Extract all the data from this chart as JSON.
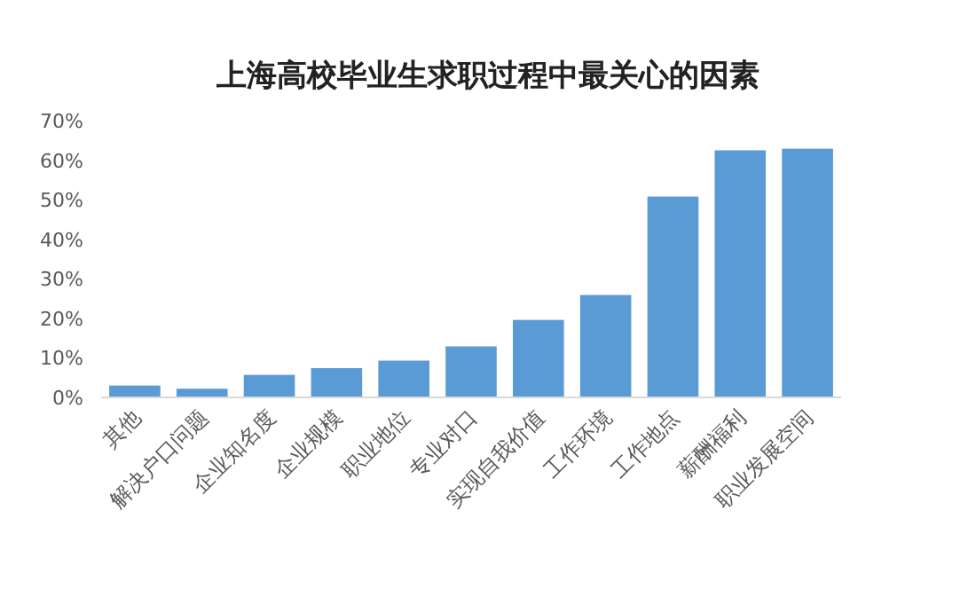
{
  "chart_data": {
    "type": "bar",
    "title": "上海高校毕业生求职过程中最关心的因素",
    "categories": [
      "其他",
      "解决户口问题",
      "企业知名度",
      "企业规模",
      "职业地位",
      "专业对口",
      "实现自我价值",
      "工作环境",
      "工作地点",
      "薪酬福利",
      "职业发展空间"
    ],
    "values": [
      3.0,
      2.2,
      5.7,
      7.4,
      9.3,
      12.9,
      19.6,
      25.9,
      50.8,
      62.5,
      62.9
    ],
    "color": "#5b9bd5",
    "ylim": [
      0,
      70
    ],
    "yticks": [
      {
        "value": 0,
        "label": "0%"
      },
      {
        "value": 10,
        "label": "10%"
      },
      {
        "value": 20,
        "label": "20%"
      },
      {
        "value": 30,
        "label": "30%"
      },
      {
        "value": 40,
        "label": "40%"
      },
      {
        "value": 50,
        "label": "50%"
      },
      {
        "value": 60,
        "label": "60%"
      },
      {
        "value": 70,
        "label": "70%"
      }
    ]
  }
}
